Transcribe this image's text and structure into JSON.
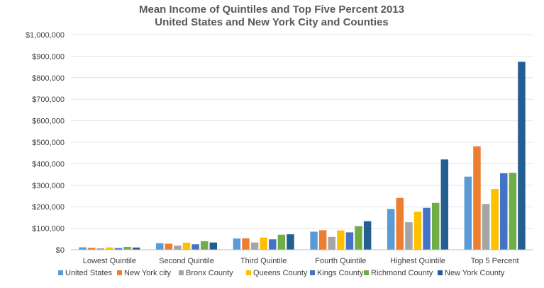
{
  "chart_data": {
    "type": "bar",
    "title": "Mean Income of Quintiles and Top Five Percent 2013",
    "subtitle": "United States and New York City and Counties",
    "xlabel": "",
    "ylabel": "",
    "ylim": [
      0,
      1000000
    ],
    "y_ticks": [
      0,
      100000,
      200000,
      300000,
      400000,
      500000,
      600000,
      700000,
      800000,
      900000,
      1000000
    ],
    "y_tick_labels": [
      "$0",
      "$100,000",
      "$200,000",
      "$300,000",
      "$400,000",
      "$500,000",
      "$600,000",
      "$700,000",
      "$800,000",
      "$900,000",
      "$1,000,000"
    ],
    "grid": true,
    "legend_position": "bottom",
    "categories": [
      "Lowest Quintile",
      "Second Quintile",
      "Third Quintile",
      "Fourth Quintile",
      "Highest Quintile",
      "Top 5 Percent"
    ],
    "series": [
      {
        "name": "United States",
        "color": "#5B9BD5",
        "values": [
          11500,
          30500,
          52500,
          84000,
          190000,
          340000
        ]
      },
      {
        "name": "New York city",
        "color": "#ED7D31",
        "values": [
          9500,
          28500,
          53500,
          91000,
          241000,
          481000
        ]
      },
      {
        "name": "Bronx County",
        "color": "#A5A5A5",
        "values": [
          7000,
          19500,
          34000,
          60000,
          128000,
          213000
        ]
      },
      {
        "name": "Queens County",
        "color": "#FFC000",
        "values": [
          11000,
          33000,
          57000,
          90000,
          177000,
          283000
        ]
      },
      {
        "name": "Kings County",
        "color": "#4472C4",
        "values": [
          8000,
          25500,
          48500,
          81000,
          195000,
          356000
        ]
      },
      {
        "name": "Richmond County",
        "color": "#70AD47",
        "values": [
          13000,
          40000,
          70000,
          110000,
          218000,
          358000
        ]
      },
      {
        "name": "New York County",
        "color": "#255E91",
        "values": [
          10500,
          34000,
          72000,
          133000,
          420000,
          874000
        ]
      }
    ]
  }
}
